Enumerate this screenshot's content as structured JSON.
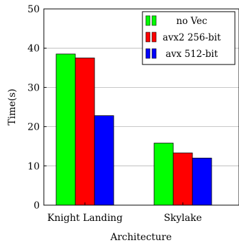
{
  "chart_data": {
    "type": "bar",
    "title": "",
    "xlabel": "Architecture",
    "ylabel": "Time(s)",
    "categories": [
      "Knight Landing",
      "Skylake"
    ],
    "ylim": [
      0,
      50
    ],
    "yticks": [
      0,
      10,
      20,
      30,
      40,
      50
    ],
    "grid": "horizontal",
    "legend_position": "top-right",
    "series": [
      {
        "name": "no Vec",
        "color": "#00ff00",
        "values": [
          38.5,
          15.8
        ]
      },
      {
        "name": "avx2 256-bit",
        "color": "#ff0000",
        "values": [
          37.5,
          13.3
        ]
      },
      {
        "name": "avx 512-bit",
        "color": "#0000ff",
        "values": [
          22.8,
          12.0
        ]
      }
    ]
  }
}
